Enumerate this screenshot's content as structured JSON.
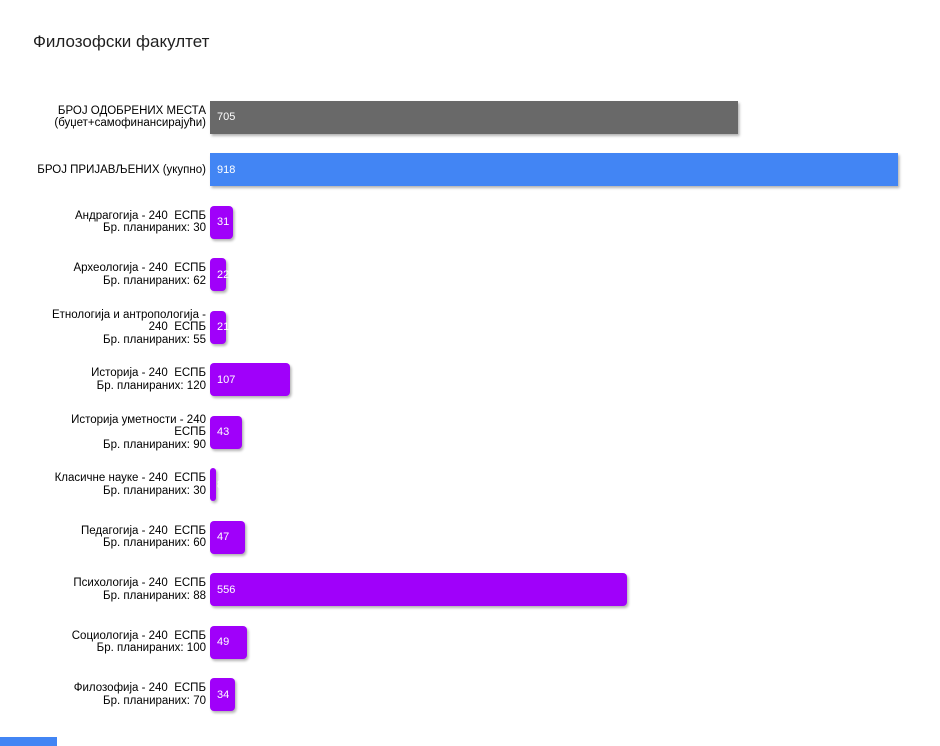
{
  "title": "Филозофски факултет",
  "chart_data": {
    "type": "bar",
    "orientation": "horizontal",
    "title": "Филозофски факултет",
    "xlabel": "",
    "ylabel": "",
    "xlim": [
      0,
      918
    ],
    "grid": false,
    "legend": "none",
    "value_labels_position": "inside-left",
    "colors": {
      "approved": "#696969",
      "applied": "#4285f4",
      "program": "#a000fa"
    },
    "bars": [
      {
        "label": "БРОЈ ОДОБРЕНИХ МЕСТА\n(буџет+самофинансирајући)",
        "value": 705,
        "role": "approved"
      },
      {
        "label": "БРОЈ ПРИЈАВЉЕНИХ (укупно)",
        "value": 918,
        "role": "applied"
      },
      {
        "label": "Андрагогија - 240  ЕСПБ\nБр. планираних: 30",
        "value": 31,
        "role": "program"
      },
      {
        "label": "Археологија - 240  ЕСПБ\nБр. планираних: 62",
        "value": 22,
        "role": "program"
      },
      {
        "label": "Етнологија и антропологија -\n240  ЕСПБ\nБр. планираних: 55",
        "value": 21,
        "role": "program"
      },
      {
        "label": "Историја - 240  ЕСПБ\nБр. планираних: 120",
        "value": 107,
        "role": "program"
      },
      {
        "label": "Историја уметности - 240\nЕСПБ\nБр. планираних: 90",
        "value": 43,
        "role": "program"
      },
      {
        "label": "Класичне науке - 240  ЕСПБ\nБр. планираних: 30",
        "value": 8,
        "role": "program"
      },
      {
        "label": "Педагогија - 240  ЕСПБ\nБр. планираних: 60",
        "value": 47,
        "role": "program"
      },
      {
        "label": "Психологија - 240  ЕСПБ\nБр. планираних: 88",
        "value": 556,
        "role": "program"
      },
      {
        "label": "Социологија - 240  ЕСПБ\nБр. планираних: 100",
        "value": 49,
        "role": "program"
      },
      {
        "label": "Филозофија - 240  ЕСПБ\nБр. планираних: 70",
        "value": 34,
        "role": "program"
      }
    ]
  },
  "footer": {
    "cutoff_fragment_color": "#4285f4"
  }
}
